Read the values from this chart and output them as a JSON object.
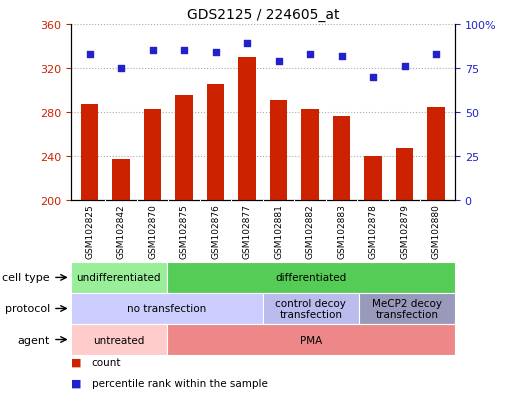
{
  "title": "GDS2125 / 224605_at",
  "samples": [
    "GSM102825",
    "GSM102842",
    "GSM102870",
    "GSM102875",
    "GSM102876",
    "GSM102877",
    "GSM102881",
    "GSM102882",
    "GSM102883",
    "GSM102878",
    "GSM102879",
    "GSM102880"
  ],
  "counts": [
    287,
    237,
    283,
    295,
    305,
    330,
    291,
    283,
    276,
    240,
    247,
    284
  ],
  "percentile_ranks": [
    83,
    75,
    85,
    85,
    84,
    89,
    79,
    83,
    82,
    70,
    76,
    83
  ],
  "ylim_left": [
    200,
    360
  ],
  "ylim_right": [
    0,
    100
  ],
  "yticks_left": [
    200,
    240,
    280,
    320,
    360
  ],
  "yticks_right": [
    0,
    25,
    50,
    75,
    100
  ],
  "bar_color": "#cc2200",
  "dot_color": "#2222cc",
  "bar_bottom": 200,
  "cell_type_labels": [
    {
      "text": "undifferentiated",
      "start": 0,
      "end": 3,
      "color": "#99ee99"
    },
    {
      "text": "differentiated",
      "start": 3,
      "end": 12,
      "color": "#55cc55"
    }
  ],
  "protocol_labels": [
    {
      "text": "no transfection",
      "start": 0,
      "end": 6,
      "color": "#ccccff"
    },
    {
      "text": "control decoy\ntransfection",
      "start": 6,
      "end": 9,
      "color": "#bbbbee"
    },
    {
      "text": "MeCP2 decoy\ntransfection",
      "start": 9,
      "end": 12,
      "color": "#9999bb"
    }
  ],
  "agent_labels": [
    {
      "text": "untreated",
      "start": 0,
      "end": 3,
      "color": "#ffcccc"
    },
    {
      "text": "PMA",
      "start": 3,
      "end": 12,
      "color": "#ee8888"
    }
  ],
  "row_labels": [
    "cell type",
    "protocol",
    "agent"
  ],
  "legend_items": [
    {
      "color": "#cc2200",
      "label": "count"
    },
    {
      "color": "#2222cc",
      "label": "percentile rank within the sample"
    }
  ],
  "grid_color": "#aaaaaa",
  "tick_bg_color": "#dddddd",
  "plot_bg": "#ffffff"
}
